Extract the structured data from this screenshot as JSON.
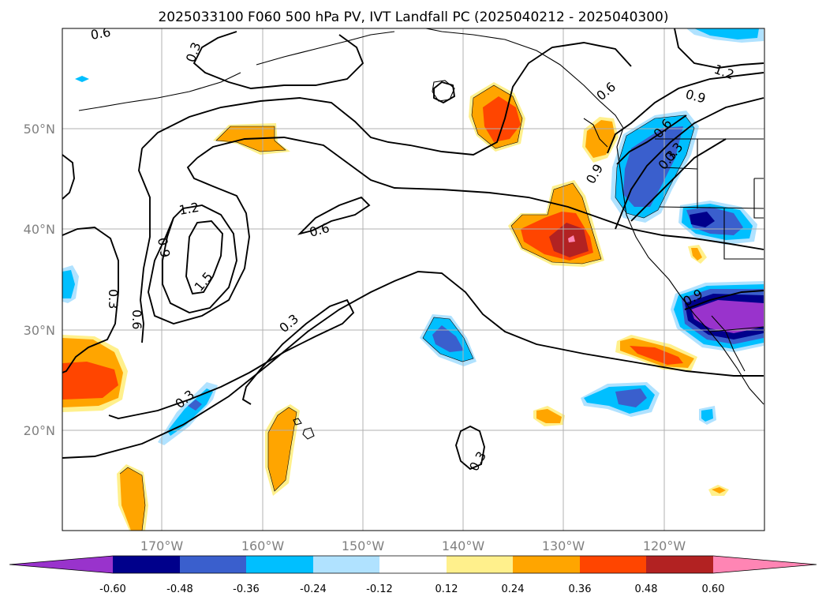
{
  "title": "2025033100 F060 500 hPa PV, IVT Landfall PC (2025040212 - 2025040300)",
  "lon_ticks": [
    "170°W",
    "160°W",
    "150°W",
    "140°W",
    "130°W",
    "120°W"
  ],
  "lat_ticks": [
    "50°N",
    "40°N",
    "30°N",
    "20°N"
  ],
  "colorbar": {
    "ticks": [
      "-0.60",
      "-0.48",
      "-0.36",
      "-0.24",
      "-0.12",
      "0.12",
      "0.24",
      "0.36",
      "0.48",
      "0.60"
    ],
    "colors": {
      "under": "#9933cc",
      "c1": "#00008b",
      "c2": "#3a5fcd",
      "c3": "#00bfff",
      "c4": "#b0e2ff",
      "neutral": "#ffffff",
      "w1": "#fff08c",
      "w2": "#ffa500",
      "w3": "#ff4500",
      "w4": "#b22222",
      "over": "#ff85b4"
    }
  },
  "contour_labels": [
    "0.6",
    "0.3",
    "1.2",
    "0.9",
    "0.6",
    "0.3",
    "1.2",
    "1.5",
    "0.9",
    "0.6",
    "0.3",
    "0.3",
    "0.6",
    "0.3",
    "0.3",
    "0.9",
    "0.6",
    "0.3",
    "0.9"
  ]
}
